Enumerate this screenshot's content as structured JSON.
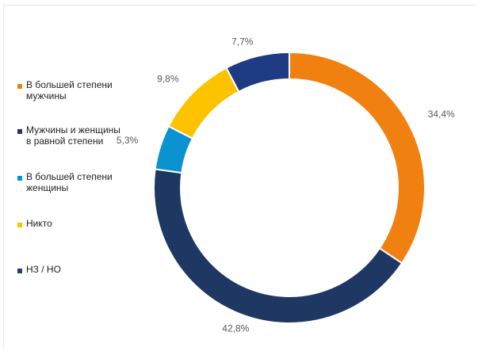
{
  "chart_data": {
    "type": "pie",
    "variant": "donut",
    "title": "",
    "legend_position": "left",
    "slices": [
      {
        "label": "В большей степени\nмужчины",
        "value": 34.4,
        "display": "34,4%",
        "color": "#F0800F"
      },
      {
        "label": "Мужчины и женщины\nв равной степени",
        "value": 42.8,
        "display": "42,8%",
        "color": "#1F3763"
      },
      {
        "label": "В большей степени\nженщины",
        "value": 5.3,
        "display": "5,3%",
        "color": "#0A93CF"
      },
      {
        "label": "Никто",
        "value": 9.8,
        "display": "9,8%",
        "color": "#FDC300"
      },
      {
        "label": "НЗ / НО",
        "value": 7.7,
        "display": "7,7%",
        "color": "#1F3B83"
      }
    ]
  }
}
